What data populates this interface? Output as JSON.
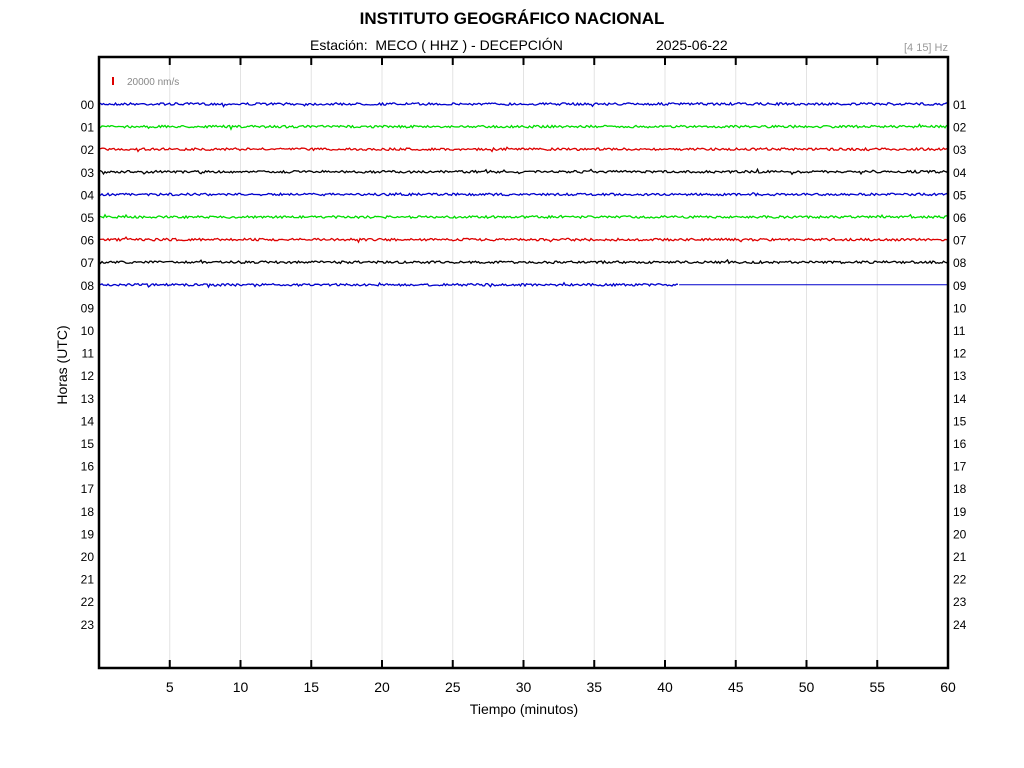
{
  "header": {
    "title": "INSTITUTO GEOGRÁFICO NACIONAL",
    "station": "Estación:  MECO ( HHZ ) - DECEPCIÓN",
    "date": "2025-06-22",
    "band": "[4 15] Hz"
  },
  "chart_data": {
    "type": "line",
    "title": "INSTITUTO GEOGRÁFICO NACIONAL",
    "xlabel": "Tiempo (minutos)",
    "ylabel": "Horas (UTC)",
    "xlim": [
      0,
      60
    ],
    "x_ticks": [
      5,
      10,
      15,
      20,
      25,
      30,
      35,
      40,
      45,
      50,
      55,
      60
    ],
    "y_ticks_left": [
      "00",
      "01",
      "02",
      "03",
      "04",
      "05",
      "06",
      "07",
      "08",
      "09",
      "10",
      "11",
      "12",
      "13",
      "14",
      "15",
      "16",
      "17",
      "18",
      "19",
      "20",
      "21",
      "22",
      "23"
    ],
    "y_ticks_right": [
      "01",
      "02",
      "03",
      "04",
      "05",
      "06",
      "07",
      "08",
      "09",
      "10",
      "11",
      "12",
      "13",
      "14",
      "15",
      "16",
      "17",
      "18",
      "19",
      "20",
      "21",
      "22",
      "23",
      "24"
    ],
    "scale_label": "20000 nm/s",
    "scale_color": "#dd0000",
    "grid": "vertical",
    "color_cycle": [
      "#0000cc",
      "#00dd00",
      "#dd0000",
      "#000000"
    ],
    "traces": [
      {
        "hour": 0,
        "color": "#0000cc",
        "end_minute": 60
      },
      {
        "hour": 1,
        "color": "#00dd00",
        "end_minute": 60
      },
      {
        "hour": 2,
        "color": "#dd0000",
        "end_minute": 60
      },
      {
        "hour": 3,
        "color": "#000000",
        "end_minute": 60
      },
      {
        "hour": 4,
        "color": "#0000cc",
        "end_minute": 60
      },
      {
        "hour": 5,
        "color": "#00dd00",
        "end_minute": 60
      },
      {
        "hour": 6,
        "color": "#dd0000",
        "end_minute": 60
      },
      {
        "hour": 7,
        "color": "#000000",
        "end_minute": 60
      },
      {
        "hour": 8,
        "color": "#0000cc",
        "end_minute": 41
      }
    ]
  }
}
